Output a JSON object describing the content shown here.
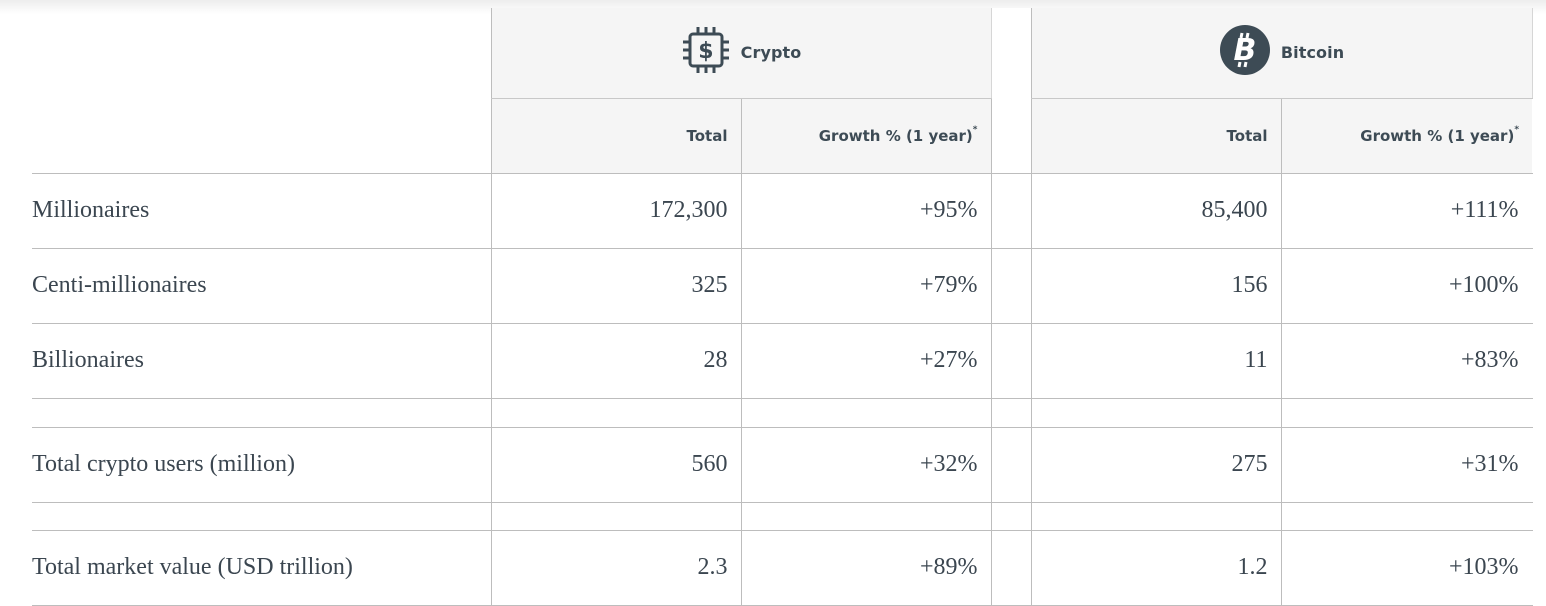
{
  "groups": {
    "crypto": {
      "label": "Crypto",
      "icon": "dollar-chip-icon"
    },
    "bitcoin": {
      "label": "Bitcoin",
      "icon": "bitcoin-icon"
    }
  },
  "subheaders": {
    "total": "Total",
    "growth": "Growth % (1 year)",
    "growth_marker": "*"
  },
  "rows": [
    {
      "label": "Millionaires",
      "crypto_total": "172,300",
      "crypto_growth": "+95%",
      "bitcoin_total": "85,400",
      "bitcoin_growth": "+111%"
    },
    {
      "label": "Centi-millionaires",
      "crypto_total": "325",
      "crypto_growth": "+79%",
      "bitcoin_total": "156",
      "bitcoin_growth": "+100%"
    },
    {
      "label": "Billionaires",
      "crypto_total": "28",
      "crypto_growth": "+27%",
      "bitcoin_total": "11",
      "bitcoin_growth": "+83%"
    },
    {
      "label": "Total crypto users (million)",
      "crypto_total": "560",
      "crypto_growth": "+32%",
      "bitcoin_total": "275",
      "bitcoin_growth": "+31%"
    },
    {
      "label": "Total market value (USD trillion)",
      "crypto_total": "2.3",
      "crypto_growth": "+89%",
      "bitcoin_total": "1.2",
      "bitcoin_growth": "+103%"
    }
  ],
  "colors": {
    "text": "#3b4650",
    "header_bg": "#f5f5f5",
    "icon": "#3d4b55",
    "rule": "#bdbdbd"
  }
}
